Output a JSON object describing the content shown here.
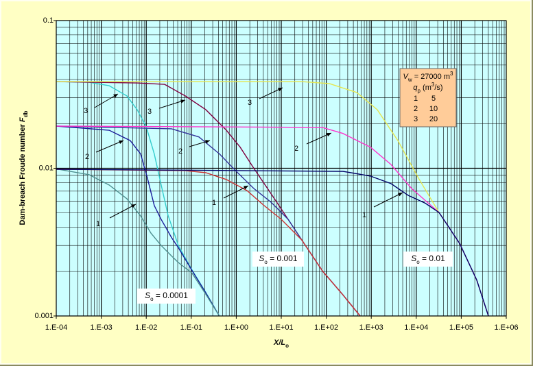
{
  "chart_data": {
    "type": "line",
    "x_label": {
      "symbol": "X/L",
      "subscript": "o"
    },
    "y_label": {
      "text": "Dam-breach Froude number ",
      "symbol": "F",
      "subscript": "db"
    },
    "xscale": "log",
    "yscale": "log",
    "grid": true,
    "xlim": [
      0.0001,
      1000000
    ],
    "ylim": [
      0.001,
      0.1
    ],
    "xticks": [
      {
        "value": 0.0001,
        "label": "1.E-04"
      },
      {
        "value": 0.001,
        "label": "1.E-03"
      },
      {
        "value": 0.01,
        "label": "1.E-02"
      },
      {
        "value": 0.1,
        "label": "1.E-01"
      },
      {
        "value": 1,
        "label": "1.E+00"
      },
      {
        "value": 10,
        "label": "1.E+01"
      },
      {
        "value": 100,
        "label": "1.E+02"
      },
      {
        "value": 1000,
        "label": "1.E+03"
      },
      {
        "value": 10000,
        "label": "1.E+04"
      },
      {
        "value": 100000,
        "label": "1.E+05"
      },
      {
        "value": 1000000,
        "label": "1.E+06"
      }
    ],
    "yticks": [
      0.001,
      0.01,
      0.1
    ],
    "annotations": [
      {
        "symbol": "S",
        "subscript": "o",
        "text": " = 0.0001"
      },
      {
        "symbol": "S",
        "subscript": "o",
        "text": " = 0.001"
      },
      {
        "symbol": "S",
        "subscript": "o",
        "text": " = 0.01"
      }
    ],
    "legend": {
      "title": {
        "symbol": "V",
        "subscript": "w",
        "text": " = 27000 m",
        "superscript": "3"
      },
      "header": {
        "symbol": "q",
        "subscript": "p",
        "text": " (m",
        "superscript": "3",
        "tail": "/s)"
      },
      "rows": [
        [
          1,
          5
        ],
        [
          2,
          10
        ],
        [
          3,
          20
        ]
      ]
    },
    "series": [
      {
        "name": "3",
        "color": "#33cccc",
        "x": [
          0.0001,
          0.00054,
          0.0015,
          0.0037,
          0.0063,
          0.01,
          0.0151,
          0.0215,
          0.0305,
          0.0517,
          0.104,
          0.211,
          0.42
        ],
        "values": [
          0.0386,
          0.0382,
          0.0362,
          0.0309,
          0.0249,
          0.0191,
          0.0125,
          0.0077,
          0.0048,
          0.003,
          0.00205,
          0.00144,
          0.001
        ]
      },
      {
        "name": "2",
        "color": "#1a1a99",
        "x": [
          0.0001,
          0.0015,
          0.0044,
          0.0075,
          0.0106,
          0.0151,
          0.0215,
          0.0364,
          0.0517,
          0.104,
          0.211,
          0.42
        ],
        "values": [
          0.0193,
          0.0181,
          0.0154,
          0.0125,
          0.00858,
          0.00559,
          0.0045,
          0.0034,
          0.0029,
          0.00203,
          0.00143,
          0.001
        ]
      },
      {
        "name": "1",
        "color": "#4d8f8f",
        "x": [
          0.0001,
          0.00054,
          0.0015,
          0.0037,
          0.0075,
          0.0127,
          0.0215,
          0.0364,
          0.0517,
          0.104,
          0.211,
          0.42
        ],
        "values": [
          0.0099,
          0.00904,
          0.0077,
          0.00622,
          0.00476,
          0.00364,
          0.003,
          0.00255,
          0.0023,
          0.00195,
          0.0014,
          0.001
        ]
      },
      {
        "name": "3",
        "color": "#800040",
        "x": [
          0.0001,
          0.0063,
          0.0256,
          0.0734,
          0.211,
          0.603,
          1.22,
          2.46,
          4.95,
          10,
          28.6,
          82.2,
          235,
          566
        ],
        "values": [
          0.0386,
          0.0378,
          0.037,
          0.0309,
          0.0249,
          0.0181,
          0.0139,
          0.01,
          0.0073,
          0.0053,
          0.00327,
          0.00202,
          0.00139,
          0.001
        ]
      },
      {
        "name": "2",
        "color": "#333399",
        "x": [
          0.0001,
          0.0364,
          0.148,
          0.425,
          1,
          2.46,
          5.9,
          14.2,
          28.6,
          82.2,
          235,
          566
        ],
        "values": [
          0.0193,
          0.0185,
          0.0163,
          0.0125,
          0.00953,
          0.0073,
          0.0059,
          0.00451,
          0.00327,
          0.00202,
          0.00139,
          0.001
        ]
      },
      {
        "name": "1",
        "color": "#cc3333",
        "x": [
          0.0001,
          0.0734,
          0.211,
          0.603,
          1.73,
          4.16,
          10,
          28.6,
          82.2,
          235,
          566
        ],
        "values": [
          0.00984,
          0.00964,
          0.00933,
          0.00839,
          0.00707,
          0.00559,
          0.00451,
          0.00327,
          0.00202,
          0.00139,
          0.001
        ]
      },
      {
        "name": "3",
        "color": "#e6e64d",
        "x": [
          0.0001,
          28.6,
          117,
          475,
          1360,
          3900,
          11200,
          32100,
          91900,
          221000,
          401800
        ],
        "values": [
          0.0386,
          0.0386,
          0.0374,
          0.0326,
          0.0249,
          0.0154,
          0.00858,
          0.00502,
          0.0031,
          0.00175,
          0.001
        ]
      },
      {
        "name": "2",
        "color": "#ff33cc",
        "x": [
          0.0001,
          82.2,
          235,
          960,
          2750,
          7870,
          32100,
          91900,
          221000,
          401800
        ],
        "values": [
          0.0193,
          0.0189,
          0.0172,
          0.0139,
          0.0106,
          0.0073,
          0.00502,
          0.0031,
          0.00175,
          0.001
        ]
      },
      {
        "name": "1",
        "color": "#000066",
        "x": [
          0.0001,
          235,
          960,
          2750,
          6610,
          15900,
          32100,
          91900,
          221000,
          401800
        ],
        "values": [
          0.00984,
          0.00953,
          0.00885,
          0.00787,
          0.00656,
          0.0058,
          0.00502,
          0.0031,
          0.00175,
          0.001
        ]
      }
    ]
  }
}
